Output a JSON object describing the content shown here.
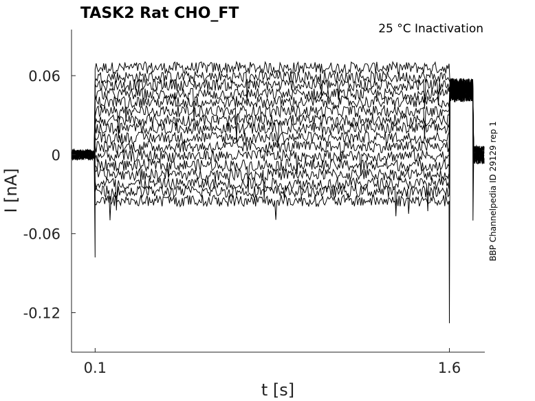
{
  "chart_data": {
    "type": "line",
    "title": "TASK2  Rat  CHO_FT",
    "subtitle": "25 °C  Inactivation",
    "xlabel": "t [s]",
    "ylabel": "I [nA]",
    "side_label": "BBP Channelpedia ID 29129 rep 1",
    "xlim": [
      0.0,
      1.75
    ],
    "ylim": [
      -0.15,
      0.095
    ],
    "xticks": [
      0.1,
      1.6
    ],
    "xtick_labels": [
      "0.1",
      "1.6"
    ],
    "yticks": [
      0.06,
      0,
      -0.06,
      -0.12
    ],
    "ytick_labels": [
      "0.06",
      "0",
      "-0.06",
      "-0.12"
    ],
    "grid": false,
    "legend": "none",
    "trace_color": "#000000",
    "sweeps": {
      "count": 16,
      "baseline_before_step_nA": 0.0,
      "step_on_s": 0.1,
      "step_off_s": 1.6,
      "step_levels_nA": [
        0.066,
        0.059,
        0.053,
        0.046,
        0.04,
        0.033,
        0.026,
        0.02,
        0.013,
        0.006,
        -0.001,
        -0.008,
        -0.015,
        -0.022,
        -0.028,
        -0.035
      ],
      "tail_level_nA": 0.049,
      "after_tail_level_nA": 0.0,
      "tail_end_s": 1.7,
      "on_transient_peak_nA": -0.078,
      "off_transient_peak_nA": -0.128,
      "second_off_transient_peak_nA": -0.05
    }
  }
}
